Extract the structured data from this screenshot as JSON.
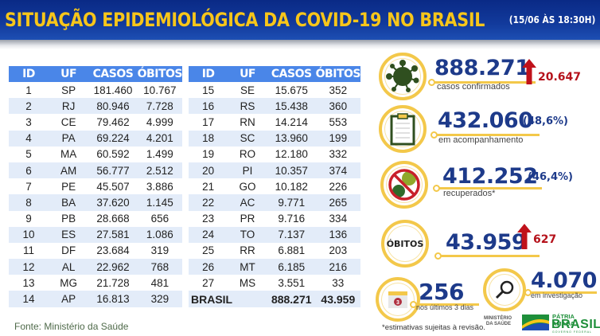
{
  "header": {
    "title": "SITUAÇÃO EPIDEMIOLÓGICA DA COVID-19 NO BRASIL",
    "date": "(15/06 ÀS 18:30H)"
  },
  "table": {
    "columns": [
      "ID",
      "UF",
      "CASOS",
      "ÓBITOS"
    ],
    "left_rows": [
      {
        "id": "1",
        "uf": "SP",
        "casos": "181.460",
        "obitos": "10.767"
      },
      {
        "id": "2",
        "uf": "RJ",
        "casos": "80.946",
        "obitos": "7.728"
      },
      {
        "id": "3",
        "uf": "CE",
        "casos": "79.462",
        "obitos": "4.999"
      },
      {
        "id": "4",
        "uf": "PA",
        "casos": "69.224",
        "obitos": "4.201"
      },
      {
        "id": "5",
        "uf": "MA",
        "casos": "60.592",
        "obitos": "1.499"
      },
      {
        "id": "6",
        "uf": "AM",
        "casos": "56.777",
        "obitos": "2.512"
      },
      {
        "id": "7",
        "uf": "PE",
        "casos": "45.507",
        "obitos": "3.886"
      },
      {
        "id": "8",
        "uf": "BA",
        "casos": "37.620",
        "obitos": "1.145"
      },
      {
        "id": "9",
        "uf": "PB",
        "casos": "28.668",
        "obitos": "656"
      },
      {
        "id": "10",
        "uf": "ES",
        "casos": "27.581",
        "obitos": "1.086"
      },
      {
        "id": "11",
        "uf": "DF",
        "casos": "23.684",
        "obitos": "319"
      },
      {
        "id": "12",
        "uf": "AL",
        "casos": "22.962",
        "obitos": "768"
      },
      {
        "id": "13",
        "uf": "MG",
        "casos": "21.728",
        "obitos": "481"
      },
      {
        "id": "14",
        "uf": "AP",
        "casos": "16.813",
        "obitos": "329"
      }
    ],
    "right_rows": [
      {
        "id": "15",
        "uf": "SE",
        "casos": "15.675",
        "obitos": "352"
      },
      {
        "id": "16",
        "uf": "RS",
        "casos": "15.438",
        "obitos": "360"
      },
      {
        "id": "17",
        "uf": "RN",
        "casos": "14.214",
        "obitos": "553"
      },
      {
        "id": "18",
        "uf": "SC",
        "casos": "13.960",
        "obitos": "199"
      },
      {
        "id": "19",
        "uf": "RO",
        "casos": "12.180",
        "obitos": "332"
      },
      {
        "id": "20",
        "uf": "PI",
        "casos": "10.357",
        "obitos": "374"
      },
      {
        "id": "21",
        "uf": "GO",
        "casos": "10.182",
        "obitos": "226"
      },
      {
        "id": "22",
        "uf": "AC",
        "casos": "9.771",
        "obitos": "265"
      },
      {
        "id": "23",
        "uf": "PR",
        "casos": "9.716",
        "obitos": "334"
      },
      {
        "id": "24",
        "uf": "TO",
        "casos": "7.137",
        "obitos": "136"
      },
      {
        "id": "25",
        "uf": "RR",
        "casos": "6.881",
        "obitos": "203"
      },
      {
        "id": "26",
        "uf": "MT",
        "casos": "6.185",
        "obitos": "216"
      },
      {
        "id": "27",
        "uf": "MS",
        "casos": "3.551",
        "obitos": "33"
      }
    ],
    "total": {
      "label": "BRASIL",
      "casos": "888.271",
      "obitos": "43.959"
    }
  },
  "source": "Fonte: Ministério da Saúde",
  "stats": {
    "confirmed": {
      "value": "888.271",
      "label": "casos confirmados",
      "delta": "20.647",
      "icon": "virus-icon"
    },
    "monitoring": {
      "value": "432.060",
      "pct": "(48,6%)",
      "label": "em acompanhamento",
      "icon": "clipboard-icon"
    },
    "recovered": {
      "value": "412.252",
      "pct": "(46,4%)",
      "label": "recuperados*",
      "icon": "no-virus-icon"
    },
    "deaths": {
      "badge": "ÓBITOS",
      "value": "43.959",
      "delta": "627"
    },
    "recent": {
      "value": "256",
      "label": "nos últimos 3 dias",
      "calendar_day": "3",
      "icon": "calendar-icon"
    },
    "investigation": {
      "value": "4.070",
      "label": "em investigação",
      "icon": "magnifier-icon"
    }
  },
  "footnote": "*estimativas sujeitas à revisão.",
  "branding": {
    "ministry": "MINISTÉRIO DA SAÚDE",
    "logo_line1": "PÁTRIA AMADA",
    "logo_line2": "BRASIL",
    "logo_line3": "GOVERNO FEDERAL"
  },
  "colors": {
    "header_bg": "#0a2a86",
    "title": "#f7c61a",
    "table_header": "#4a86e8",
    "row_alt": "#e3ecf9",
    "number": "#1d3a8a",
    "accent_ring": "#f3c84a",
    "delta_red": "#b5121b"
  }
}
